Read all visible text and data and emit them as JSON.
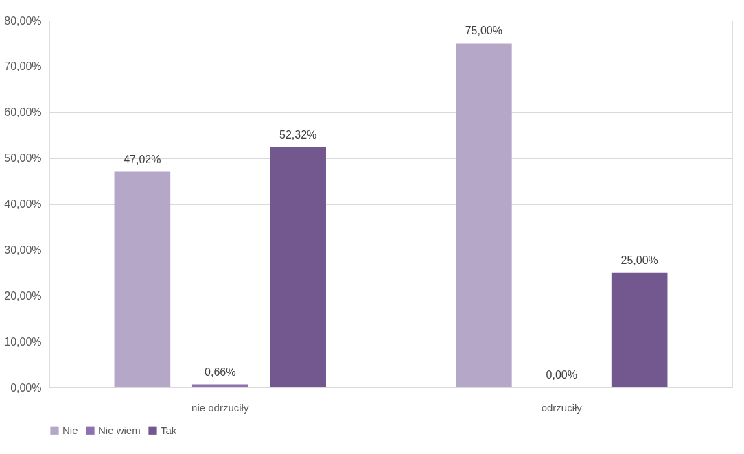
{
  "chart_data": {
    "type": "bar",
    "categories": [
      "nie odrzuciły",
      "odrzuciły"
    ],
    "series": [
      {
        "name": "Nie",
        "color": "#b4a7c8",
        "values": [
          47.02,
          75.0
        ],
        "value_labels": [
          "47,02%",
          "75,00%"
        ]
      },
      {
        "name": "Nie wiem",
        "color": "#8e71b1",
        "values": [
          0.66,
          0.0
        ],
        "value_labels": [
          "0,66%",
          "0,00%"
        ]
      },
      {
        "name": "Tak",
        "color": "#73578f",
        "values": [
          52.32,
          25.0
        ],
        "value_labels": [
          "52,32%",
          "25,00%"
        ]
      }
    ],
    "ylim": [
      0,
      80
    ],
    "yticks": [
      {
        "value": 0,
        "label": "0,00%"
      },
      {
        "value": 10,
        "label": "10,00%"
      },
      {
        "value": 20,
        "label": "20,00%"
      },
      {
        "value": 30,
        "label": "30,00%"
      },
      {
        "value": 40,
        "label": "40,00%"
      },
      {
        "value": 50,
        "label": "50,00%"
      },
      {
        "value": 60,
        "label": "60,00%"
      },
      {
        "value": 70,
        "label": "70,00%"
      },
      {
        "value": 80,
        "label": "80,00%"
      }
    ],
    "grid": "y",
    "legend": "bottom"
  }
}
